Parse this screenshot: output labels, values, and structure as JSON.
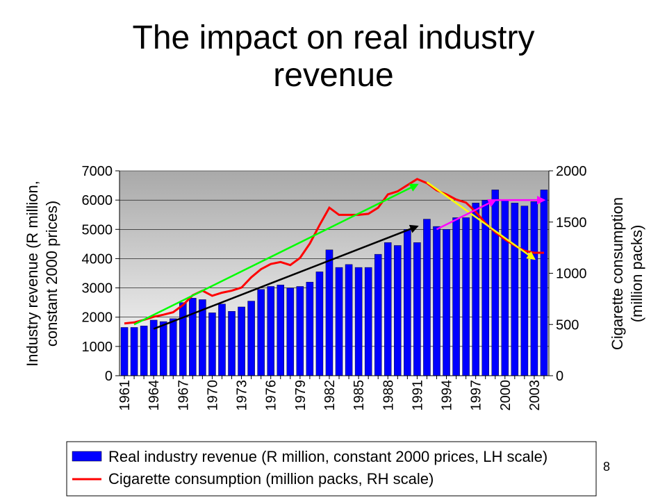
{
  "slide": {
    "title_line1": "The impact on real industry",
    "title_line2": "revenue",
    "page_number": "8"
  },
  "chart_data": {
    "type": "bar",
    "title": "",
    "years": [
      1961,
      1962,
      1963,
      1964,
      1965,
      1966,
      1967,
      1968,
      1969,
      1970,
      1971,
      1972,
      1973,
      1974,
      1975,
      1976,
      1977,
      1978,
      1979,
      1980,
      1981,
      1982,
      1983,
      1984,
      1985,
      1986,
      1987,
      1988,
      1989,
      1990,
      1991,
      1992,
      1993,
      1994,
      1995,
      1996,
      1997,
      1998,
      1999,
      2000,
      2001,
      2002,
      2003,
      2004
    ],
    "x_tick_labels": [
      "1961",
      "1964",
      "1967",
      "1970",
      "1973",
      "1976",
      "1979",
      "1982",
      "1985",
      "1988",
      "1991",
      "1994",
      "1997",
      "2000",
      "2003"
    ],
    "y_left_label_line1": "Industry revenue (R million,",
    "y_left_label_line2": "constant 2000 prices)",
    "y_left_ticks": [
      "0",
      "1000",
      "2000",
      "3000",
      "4000",
      "5000",
      "6000",
      "7000"
    ],
    "y_left_lim": [
      0,
      7000
    ],
    "y_right_label_line1": "Cigarette consumption",
    "y_right_label_line2": "(million packs)",
    "y_right_ticks": [
      "0",
      "500",
      "1000",
      "1500",
      "2000"
    ],
    "y_right_lim": [
      0,
      2000
    ],
    "series": [
      {
        "name": "Real industry revenue (R million, constant 2000 prices, LH scale)",
        "kind": "bar",
        "axis": "left",
        "color": "#0000ff",
        "values": [
          1650,
          1650,
          1700,
          1900,
          1850,
          1950,
          2500,
          2650,
          2600,
          2150,
          2450,
          2200,
          2350,
          2550,
          2950,
          3050,
          3100,
          3000,
          3050,
          3200,
          3550,
          4300,
          3700,
          3800,
          3700,
          3700,
          4150,
          4550,
          4450,
          5000,
          4550,
          5350,
          5100,
          5000,
          5400,
          5400,
          5900,
          6000,
          6350,
          6000,
          5900,
          5800,
          5950,
          6350
        ]
      },
      {
        "name": "Cigarette consumption (million packs, RH scale)",
        "kind": "line",
        "axis": "right",
        "color": "#ff0000",
        "values": [
          510,
          520,
          545,
          575,
          595,
          620,
          690,
          785,
          830,
          780,
          810,
          830,
          860,
          960,
          1040,
          1090,
          1110,
          1080,
          1150,
          1290,
          1470,
          1640,
          1570,
          1570,
          1570,
          1580,
          1640,
          1770,
          1800,
          1860,
          1920,
          1880,
          1810,
          1770,
          1720,
          1690,
          1600,
          1490,
          1400,
          1330,
          1270,
          1220,
          1200,
          1200
        ]
      }
    ],
    "trend_lines": [
      {
        "color": "#00ff00",
        "axis": "left",
        "from": [
          1962,
          1750
        ],
        "to": [
          1991,
          6530
        ]
      },
      {
        "color": "#000000",
        "axis": "left",
        "from": [
          1964,
          1600
        ],
        "to": [
          1991,
          5100
        ]
      },
      {
        "color": "#ffff00",
        "axis": "right",
        "from": [
          1992,
          1890
        ],
        "to": [
          2003,
          1140
        ]
      },
      {
        "color": "#ff00ff",
        "axis": "left",
        "from": [
          1993,
          5000
        ],
        "to": [
          1999,
          6000
        ]
      },
      {
        "color": "#ff00ff",
        "axis": "left",
        "from": [
          1999,
          6000
        ],
        "to": [
          2004,
          6000
        ]
      }
    ],
    "legend_position": "bottom",
    "plot_background": "gradient #a9a9a9 to #ffffff"
  }
}
